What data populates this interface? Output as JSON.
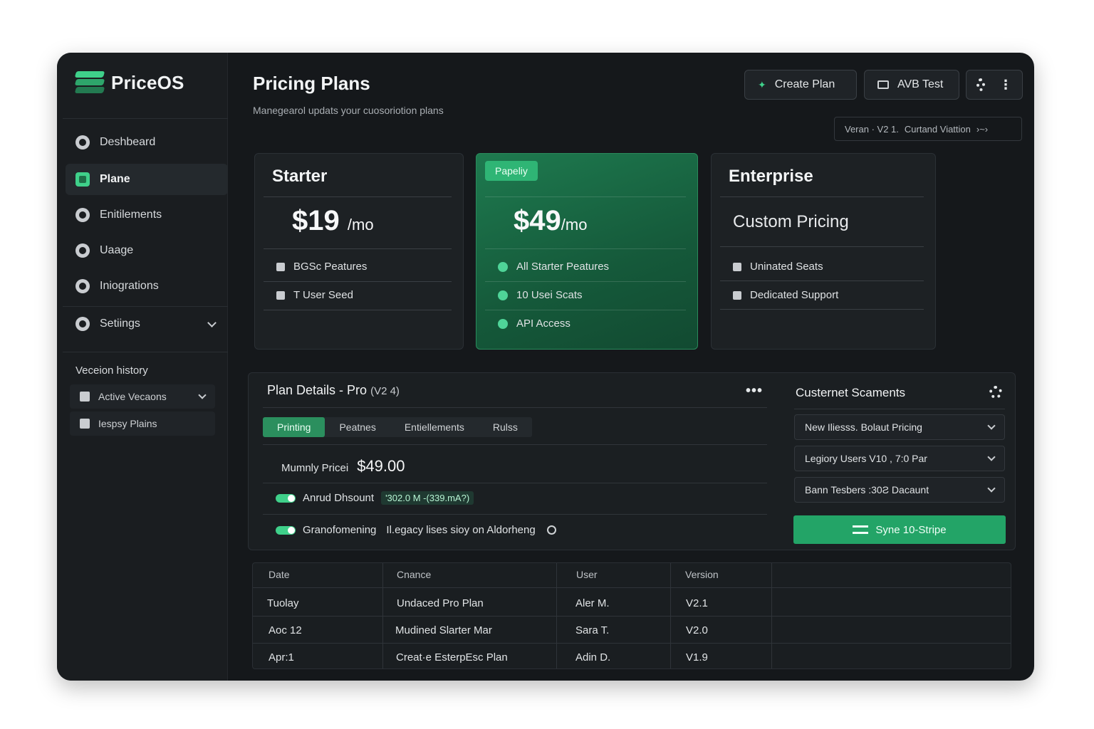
{
  "app": {
    "name": "PriceOS"
  },
  "sidebar": {
    "items": [
      {
        "label": "Deshbeard",
        "icon": "dashboard-icon"
      },
      {
        "label": "Plane",
        "icon": "layers-icon"
      },
      {
        "label": "Enitilements",
        "icon": "badge-icon"
      },
      {
        "label": "Uaage",
        "icon": "usage-icon"
      },
      {
        "label": "Iniogrations",
        "icon": "integrations-icon"
      },
      {
        "label": "Setiings",
        "icon": "gear-icon"
      }
    ],
    "version_history": {
      "title": "Veceion history",
      "items": [
        {
          "label": "Active Vecaons"
        },
        {
          "label": "Iespsy Plains"
        }
      ]
    }
  },
  "header": {
    "title": "Pricing Plans",
    "subtitle": "Manegearol updats your cuosoriotion plans",
    "create_plan": "Create Plan",
    "ab_test": "AVB Test",
    "version_bar": {
      "version": "Veran · V2 1.",
      "status": "Curtand Viattion",
      "suffix": "›~›"
    }
  },
  "plans": [
    {
      "name": "Starter",
      "price": "19",
      "currency": "$",
      "period": "/mo",
      "features": [
        "BGSc Peatures",
        "T User Seed"
      ]
    },
    {
      "name": "",
      "badge": "Papeliy",
      "price": "49",
      "currency": "$",
      "period": "/mo",
      "features": [
        "All Starter Peatures",
        "10 Usei Scats",
        "API Access"
      ]
    },
    {
      "name": "Enterprise",
      "custom": "Custom Pricing",
      "features": [
        "Uninated Seats",
        "Dedicated Support"
      ]
    }
  ],
  "details": {
    "title": "Plan Details - Pro",
    "version": "(V2 4)",
    "tabs": [
      "Printing",
      "Peatnes",
      "Entiellements",
      "Rulss"
    ],
    "monthly_label": "Mumnly Pricei",
    "monthly_value": "$49.00",
    "annual_label": "Anrud Dhsount",
    "annual_value": "'302.0 M -(339.mA?)",
    "grandfather_label": "Granofomening",
    "grandfather_text": "Il.egacy lises sioy on Aldorheng"
  },
  "segments": {
    "title": "Custernet Scaments",
    "items": [
      "New Iliesss. Bolaut Pricing",
      "Legiory Users V10 , 7:0 Par",
      "Bann Tesbers :30Ƨ Dacaunt"
    ],
    "sync_label": "Syne 10-Stripe"
  },
  "history_table": {
    "headers": [
      "Date",
      "Cnance",
      "User",
      "Version"
    ],
    "rows": [
      [
        "Tuolay",
        "Undaced Pro Plan",
        "Aler M.",
        "V2.1"
      ],
      [
        "Aoc 12",
        "Mudined Slarter Mar",
        "Sara T.",
        "V2.0"
      ],
      [
        "Apr:1",
        "Creat·e EsterpEsc Plan",
        "Adin D.",
        "V1.9"
      ]
    ]
  },
  "colors": {
    "accent": "#3fd08a",
    "accent_dark": "#1e7a4f",
    "bg": "#15181b"
  }
}
